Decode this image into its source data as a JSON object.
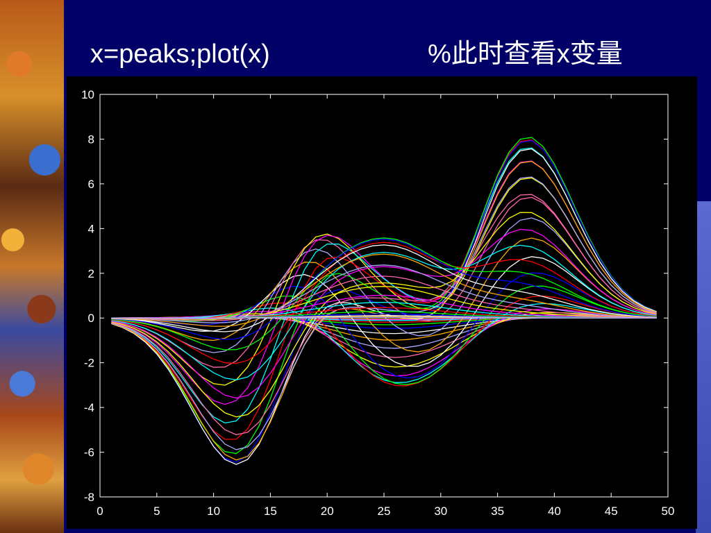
{
  "slide": {
    "code": "x=peaks;plot(x)",
    "comment": "%此时查看x变量"
  },
  "colors": {
    "background": "#000066",
    "plot_background": "#000000",
    "axes": "#ffffff",
    "title_text": "#ffffff"
  },
  "chart_data": {
    "type": "line",
    "title": "",
    "xlabel": "",
    "ylabel": "",
    "xlim": [
      0,
      50
    ],
    "ylim": [
      -8,
      10
    ],
    "xticks": [
      0,
      5,
      10,
      15,
      20,
      25,
      30,
      35,
      40,
      45,
      50
    ],
    "yticks": [
      -8,
      -6,
      -4,
      -2,
      0,
      2,
      4,
      6,
      8,
      10
    ],
    "grid": false,
    "legend": "none",
    "series_count": 49,
    "x": [
      1,
      2,
      3,
      4,
      5,
      6,
      7,
      8,
      9,
      10,
      11,
      12,
      13,
      14,
      15,
      16,
      17,
      18,
      19,
      20,
      21,
      22,
      23,
      24,
      25,
      26,
      27,
      28,
      29,
      30,
      31,
      32,
      33,
      34,
      35,
      36,
      37,
      38,
      39,
      40,
      41,
      42,
      43,
      44,
      45,
      46,
      47,
      48,
      49
    ],
    "description": "peaks(49) matrix: each of the 49 columns plotted as a separate line over row index 1-49",
    "envelope": {
      "max_values": [
        {
          "x": 20,
          "y": 3.8
        },
        {
          "x": 25,
          "y": 3.6
        },
        {
          "x": 38,
          "y": 8.1
        }
      ],
      "min_values": [
        {
          "x": 12,
          "y": -6.5
        },
        {
          "x": 26,
          "y": -2.9
        }
      ]
    },
    "color_cycle": [
      "#ffff00",
      "#ff00ff",
      "#00ffff",
      "#ff0000",
      "#00ff00",
      "#0000ff",
      "#ffffff",
      "#ffaa00",
      "#aaaaff",
      "#ff66aa"
    ]
  }
}
